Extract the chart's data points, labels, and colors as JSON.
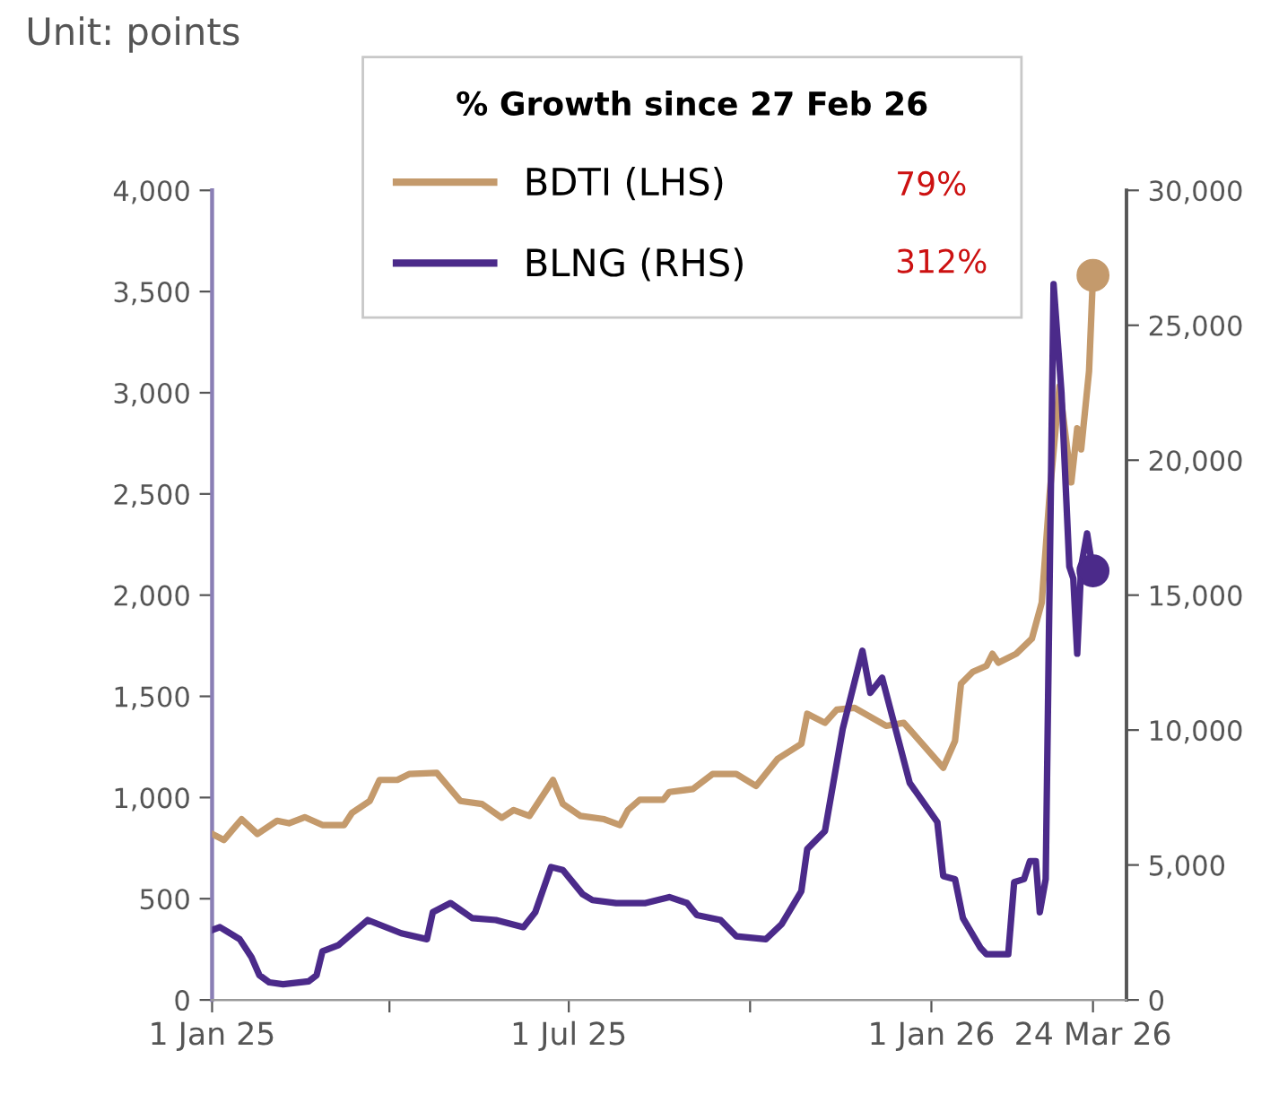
{
  "chart_data": {
    "type": "line",
    "title": "Unit: points",
    "legend_title": "% Growth since 27 Feb 26",
    "legend": "top",
    "annotations": [
      "79%",
      "312%"
    ],
    "xlim": [
      "2025-01-01",
      "2026-04-10"
    ],
    "xticks": [
      {
        "value": "2025-01-01",
        "label": "1 Jan 25"
      },
      {
        "value": "2025-04-01",
        "label": null
      },
      {
        "value": "2025-07-01",
        "label": "1 Jul 25"
      },
      {
        "value": "2025-10-01",
        "label": null
      },
      {
        "value": "2026-01-01",
        "label": "1 Jan 26"
      },
      {
        "value": "2026-03-24",
        "label": "24 Mar 26"
      }
    ],
    "ylim": [
      0,
      4000
    ],
    "yticks": [
      {
        "value": 0,
        "label": "0"
      },
      {
        "value": 500,
        "label": "500"
      },
      {
        "value": 1000,
        "label": "1,000"
      },
      {
        "value": 1500,
        "label": "1,500"
      },
      {
        "value": 2000,
        "label": "2,000"
      },
      {
        "value": 2500,
        "label": "2,500"
      },
      {
        "value": 3000,
        "label": "3,000"
      },
      {
        "value": 3500,
        "label": "3,500"
      },
      {
        "value": 4000,
        "label": "4,000"
      }
    ],
    "y2lim": [
      0,
      30000
    ],
    "y2ticks": [
      {
        "value": 0,
        "label": "0"
      },
      {
        "value": 5000,
        "label": "5,000"
      },
      {
        "value": 10000,
        "label": "10,000"
      },
      {
        "value": 15000,
        "label": "15,000"
      },
      {
        "value": 20000,
        "label": "20,000"
      },
      {
        "value": 25000,
        "label": "25,000"
      },
      {
        "value": 30000,
        "label": "30,000"
      }
    ],
    "grid": false,
    "series": [
      {
        "name": "BDTI (LHS)",
        "color": "#c49a6c",
        "x": [
          "2025-01-01",
          "2025-01-07",
          "2025-01-16",
          "2025-01-24",
          "2025-02-03",
          "2025-02-09",
          "2025-02-17",
          "2025-02-26",
          "2025-03-09",
          "2025-03-13",
          "2025-03-22",
          "2025-03-27",
          "2025-04-05",
          "2025-04-11",
          "2025-04-25",
          "2025-05-07",
          "2025-05-18",
          "2025-05-28",
          "2025-06-03",
          "2025-06-11",
          "2025-06-23",
          "2025-06-28",
          "2025-07-07",
          "2025-07-19",
          "2025-07-27",
          "2025-07-31",
          "2025-08-06",
          "2025-08-18",
          "2025-08-21",
          "2025-09-02",
          "2025-09-12",
          "2025-09-24",
          "2025-10-04",
          "2025-10-15",
          "2025-10-27",
          "2025-10-30",
          "2025-11-08",
          "2025-11-14",
          "2025-11-23",
          "2025-12-09",
          "2025-12-18",
          "2026-01-07",
          "2026-01-13",
          "2026-01-16",
          "2026-01-22",
          "2026-01-29",
          "2026-02-01",
          "2026-02-04",
          "2026-02-13",
          "2026-02-21",
          "2026-02-26",
          "2026-03-02",
          "2026-03-07",
          "2026-03-13",
          "2026-03-16",
          "2026-03-18",
          "2026-03-22",
          "2026-03-24"
        ],
        "values": [
          820,
          790,
          893,
          820,
          885,
          873,
          903,
          864,
          864,
          924,
          983,
          1087,
          1087,
          1116,
          1122,
          983,
          968,
          900,
          938,
          909,
          1087,
          968,
          909,
          893,
          864,
          938,
          989,
          989,
          1027,
          1042,
          1116,
          1116,
          1057,
          1191,
          1265,
          1414,
          1369,
          1434,
          1443,
          1354,
          1369,
          1147,
          1280,
          1562,
          1621,
          1651,
          1710,
          1666,
          1710,
          1785,
          1963,
          2497,
          3032,
          2557,
          2824,
          2720,
          3107,
          3580
        ]
      },
      {
        "name": "BLNG (RHS)",
        "color": "#4b2a8a",
        "axis": "y2",
        "x": [
          "2025-01-01",
          "2025-01-05",
          "2025-01-15",
          "2025-01-21",
          "2025-01-25",
          "2025-01-30",
          "2025-02-06",
          "2025-02-19",
          "2025-02-23",
          "2025-02-26",
          "2025-03-06",
          "2025-03-21",
          "2025-04-07",
          "2025-04-20",
          "2025-04-23",
          "2025-05-02",
          "2025-05-13",
          "2025-05-25",
          "2025-06-08",
          "2025-06-14",
          "2025-06-22",
          "2025-06-28",
          "2025-07-08",
          "2025-07-13",
          "2025-07-25",
          "2025-08-09",
          "2025-08-21",
          "2025-08-30",
          "2025-09-04",
          "2025-09-16",
          "2025-09-24",
          "2025-10-09",
          "2025-10-17",
          "2025-10-27",
          "2025-10-30",
          "2025-11-08",
          "2025-11-17",
          "2025-11-27",
          "2025-12-01",
          "2025-12-07",
          "2025-12-21",
          "2026-01-04",
          "2026-01-07",
          "2026-01-13",
          "2026-01-17",
          "2026-01-26",
          "2026-01-29",
          "2026-02-09",
          "2026-02-12",
          "2026-02-17",
          "2026-02-20",
          "2026-02-23",
          "2026-02-25",
          "2026-02-28",
          "2026-03-04",
          "2026-03-08",
          "2026-03-12",
          "2026-03-14",
          "2026-03-16",
          "2026-03-18",
          "2026-03-21",
          "2026-03-24"
        ],
        "values": [
          2585,
          2695,
          2250,
          1580,
          915,
          650,
          580,
          690,
          915,
          1800,
          2025,
          2960,
          2470,
          2250,
          3250,
          3590,
          3030,
          2960,
          2695,
          3250,
          4925,
          4810,
          3920,
          3700,
          3590,
          3590,
          3810,
          3590,
          3140,
          2960,
          2360,
          2250,
          2805,
          4030,
          5590,
          6260,
          10040,
          12940,
          11380,
          11940,
          8040,
          6590,
          4590,
          4475,
          3030,
          1920,
          1690,
          1690,
          4365,
          4475,
          5145,
          5145,
          3250,
          4475,
          26525,
          22515,
          16055,
          15615,
          12830,
          16055,
          17285,
          15900
        ]
      },
      {
        "color": "#c49a6c",
        "type": "scatter",
        "marker": "circle",
        "x": [
          "2026-03-24"
        ],
        "values": [
          3580
        ]
      },
      {
        "color": "#4b2a8a",
        "type": "scatter",
        "marker": "circle",
        "axis": "y2",
        "x": [
          "2026-03-24"
        ],
        "values": [
          15900
        ]
      }
    ]
  }
}
